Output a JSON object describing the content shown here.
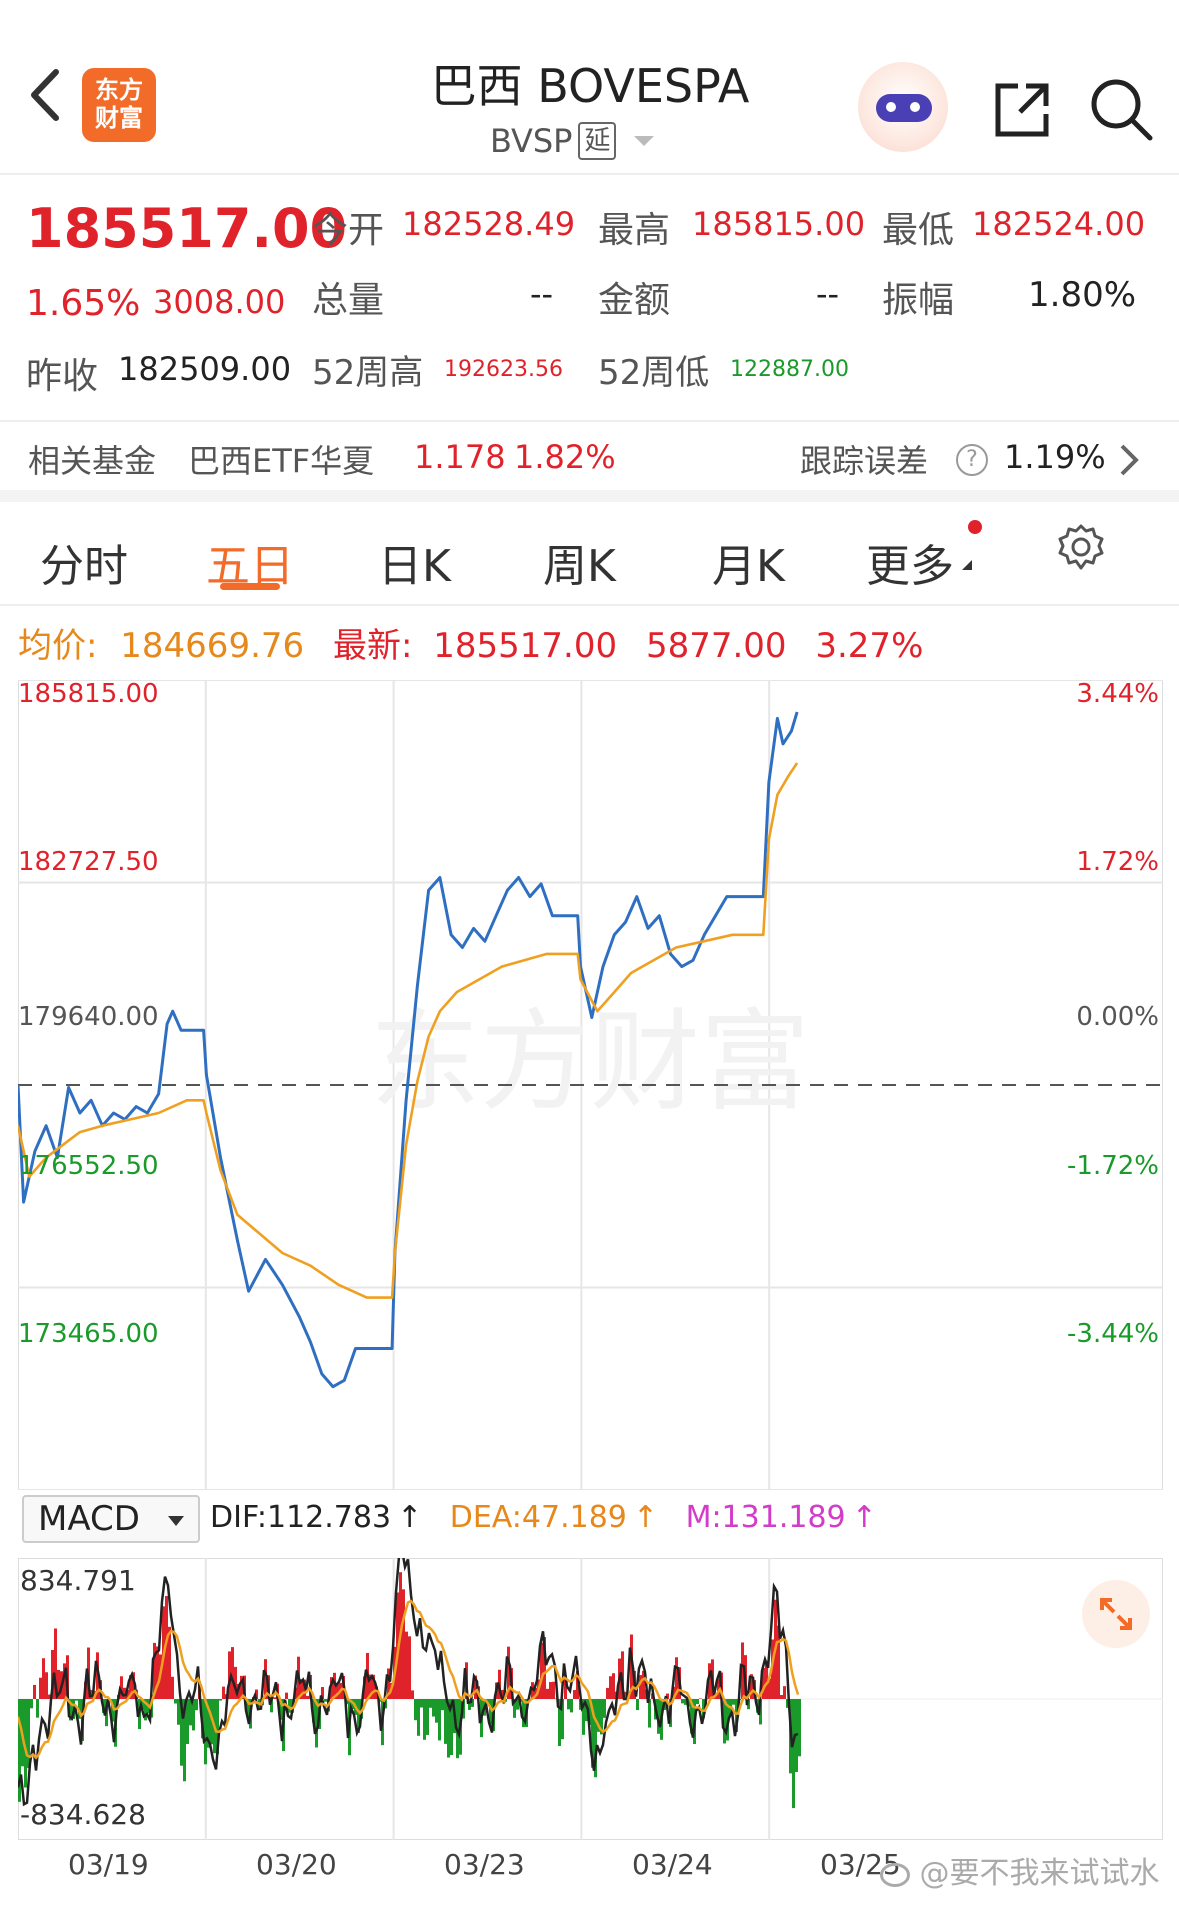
{
  "header": {
    "logo_text_line1": "东方",
    "logo_text_line2": "财富",
    "title": "巴西 BOVESPA",
    "code": "BVSP",
    "delay_badge": "延"
  },
  "quote": {
    "price": "185517.00",
    "change_pct": "1.65%",
    "change_val": "3008.00",
    "prev_close_label": "昨收",
    "prev_close": "182509.00",
    "open_label": "今开",
    "open": "182528.49",
    "high_label": "最高",
    "high": "185815.00",
    "low_label": "最低",
    "low": "182524.00",
    "volume_label": "总量",
    "volume": "--",
    "amount_label": "金额",
    "amount": "--",
    "amplitude_label": "振幅",
    "amplitude": "1.80%",
    "w52_high_label": "52周高",
    "w52_high": "192623.56",
    "w52_low_label": "52周低",
    "w52_low": "122887.00"
  },
  "fund": {
    "label": "相关基金",
    "name": "巴西ETF华夏",
    "price": "1.178",
    "pct": "1.82%",
    "tracking_label": "跟踪误差",
    "tracking_value": "1.19%"
  },
  "tabs": [
    "分时",
    "五日",
    "日K",
    "周K",
    "月K",
    "更多"
  ],
  "info_line": {
    "avg_label": "均价:",
    "avg_value": "184669.76",
    "latest_label": "最新:",
    "latest_value": "185517.00",
    "change_val": "5877.00",
    "change_pct": "3.27%"
  },
  "chart_data": {
    "type": "line",
    "y_left_ticks": [
      "185815.00",
      "182727.50",
      "179640.00",
      "176552.50",
      "173465.00"
    ],
    "y_right_ticks": [
      "3.44%",
      "1.72%",
      "0.00%",
      "-1.72%",
      "-3.44%"
    ],
    "ylim": [
      173465.0,
      185815.0
    ],
    "x_labels": [
      "03/19",
      "03/20",
      "03/23",
      "03/24",
      "03/25"
    ],
    "series": [
      {
        "name": "price",
        "color": "#2f6fc1",
        "points": [
          [
            0,
            179640
          ],
          [
            0.01,
            177800
          ],
          [
            0.03,
            178600
          ],
          [
            0.05,
            179000
          ],
          [
            0.07,
            178500
          ],
          [
            0.09,
            179600
          ],
          [
            0.11,
            179200
          ],
          [
            0.13,
            179400
          ],
          [
            0.15,
            179000
          ],
          [
            0.17,
            179200
          ],
          [
            0.19,
            179100
          ],
          [
            0.21,
            179300
          ],
          [
            0.23,
            179200
          ],
          [
            0.25,
            179500
          ],
          [
            0.265,
            180600
          ],
          [
            0.275,
            180800
          ],
          [
            0.29,
            180500
          ],
          [
            0.31,
            180500
          ],
          [
            0.33,
            180500
          ],
          [
            0.335,
            179800
          ],
          [
            0.36,
            178500
          ],
          [
            0.39,
            177200
          ],
          [
            0.41,
            176400
          ],
          [
            0.44,
            176900
          ],
          [
            0.47,
            176500
          ],
          [
            0.5,
            176000
          ],
          [
            0.52,
            175600
          ],
          [
            0.54,
            175100
          ],
          [
            0.56,
            174900
          ],
          [
            0.58,
            175000
          ],
          [
            0.6,
            175500
          ],
          [
            0.62,
            175500
          ],
          [
            0.64,
            175500
          ],
          [
            0.665,
            175500
          ],
          [
            0.67,
            177000
          ],
          [
            0.69,
            179400
          ],
          [
            0.71,
            181200
          ],
          [
            0.73,
            182700
          ],
          [
            0.75,
            182900
          ],
          [
            0.77,
            182000
          ],
          [
            0.79,
            181800
          ],
          [
            0.81,
            182100
          ],
          [
            0.83,
            181900
          ],
          [
            0.85,
            182300
          ],
          [
            0.87,
            182700
          ],
          [
            0.89,
            182900
          ],
          [
            0.91,
            182600
          ],
          [
            0.93,
            182800
          ],
          [
            0.95,
            182300
          ],
          [
            0.97,
            182300
          ],
          [
            0.995,
            182300
          ],
          [
            1.0,
            181500
          ],
          [
            1.02,
            180700
          ],
          [
            1.04,
            181500
          ],
          [
            1.06,
            182000
          ],
          [
            1.08,
            182200
          ],
          [
            1.1,
            182600
          ],
          [
            1.12,
            182100
          ],
          [
            1.14,
            182300
          ],
          [
            1.16,
            181700
          ],
          [
            1.18,
            181500
          ],
          [
            1.2,
            181600
          ],
          [
            1.22,
            182000
          ],
          [
            1.24,
            182300
          ],
          [
            1.26,
            182600
          ],
          [
            1.28,
            182600
          ],
          [
            1.3,
            182600
          ],
          [
            1.325,
            182600
          ],
          [
            1.335,
            184400
          ],
          [
            1.35,
            185400
          ],
          [
            1.36,
            185000
          ],
          [
            1.375,
            185200
          ],
          [
            1.385,
            185500
          ]
        ]
      },
      {
        "name": "avg",
        "color": "#f0a020",
        "points": [
          [
            0,
            179000
          ],
          [
            0.02,
            178200
          ],
          [
            0.05,
            178500
          ],
          [
            0.08,
            178700
          ],
          [
            0.11,
            178900
          ],
          [
            0.15,
            179000
          ],
          [
            0.2,
            179100
          ],
          [
            0.25,
            179200
          ],
          [
            0.3,
            179400
          ],
          [
            0.33,
            179400
          ],
          [
            0.335,
            179200
          ],
          [
            0.36,
            178300
          ],
          [
            0.39,
            177600
          ],
          [
            0.43,
            177300
          ],
          [
            0.47,
            177000
          ],
          [
            0.52,
            176800
          ],
          [
            0.57,
            176500
          ],
          [
            0.62,
            176300
          ],
          [
            0.665,
            176300
          ],
          [
            0.67,
            177000
          ],
          [
            0.69,
            178700
          ],
          [
            0.71,
            179700
          ],
          [
            0.73,
            180400
          ],
          [
            0.75,
            180800
          ],
          [
            0.78,
            181100
          ],
          [
            0.82,
            181300
          ],
          [
            0.86,
            181500
          ],
          [
            0.9,
            181600
          ],
          [
            0.94,
            181700
          ],
          [
            0.97,
            181700
          ],
          [
            0.995,
            181700
          ],
          [
            1.0,
            181300
          ],
          [
            1.03,
            180800
          ],
          [
            1.06,
            181100
          ],
          [
            1.09,
            181400
          ],
          [
            1.13,
            181600
          ],
          [
            1.17,
            181800
          ],
          [
            1.22,
            181900
          ],
          [
            1.27,
            182000
          ],
          [
            1.325,
            182000
          ],
          [
            1.335,
            183500
          ],
          [
            1.35,
            184200
          ],
          [
            1.37,
            184500
          ],
          [
            1.385,
            184700
          ]
        ]
      }
    ]
  },
  "macd": {
    "selector_label": "MACD",
    "dif": "DIF:112.783",
    "dea": "DEA:47.189",
    "m": "M:131.189",
    "top_value": "834.791",
    "bottom_value": "-834.628",
    "arrow": "↑"
  },
  "colors": {
    "red": "#e0222b",
    "green": "#1a9a2a",
    "orange": "#e6881b",
    "magenta": "#d23cc8",
    "line_blue": "#2f6fc1",
    "avg_line": "#f0a020"
  },
  "watermark": "东方财富",
  "footer_watermark": "@要不我来试试水",
  "icons": [
    "back-icon",
    "assistant-robot-icon",
    "share-icon",
    "search-icon",
    "help-icon",
    "chevron-right-icon",
    "gear-icon",
    "dropdown-triangle-icon",
    "expand-icon",
    "weibo-icon"
  ]
}
